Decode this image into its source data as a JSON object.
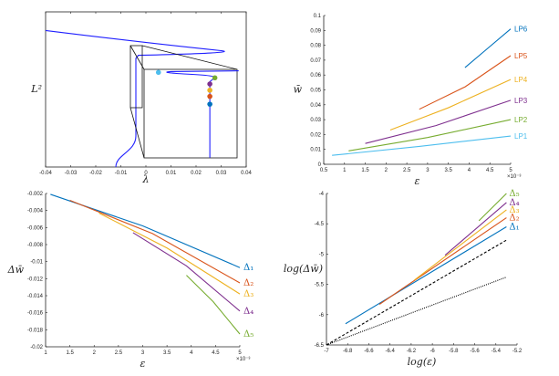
{
  "chart_data": [
    {
      "type": "line",
      "title": "",
      "xlabel": "λ",
      "ylabel": "L²",
      "xlim": [
        -0.04,
        0.04
      ],
      "ylim": [
        0,
        1
      ],
      "xticks": [
        "-0.04",
        "-0.03",
        "-0.02",
        "-0.01",
        "0",
        "0.01",
        "0.02",
        "0.03",
        "0.04"
      ],
      "series": [
        {
          "name": "bifurcation-curve",
          "color": "#1f1fff",
          "points": [
            [
              -0.04,
              0.88
            ],
            [
              0.0,
              0.8
            ],
            [
              0.03,
              0.75
            ],
            [
              0.034,
              0.73
            ],
            [
              0.03,
              0.72
            ],
            [
              -0.003,
              0.72
            ],
            [
              -0.004,
              0.7
            ],
            [
              -0.004,
              0.2
            ],
            [
              -0.0045,
              0.15
            ],
            [
              -0.009,
              0.08
            ],
            [
              -0.012,
              0.0
            ]
          ]
        }
      ],
      "inset": {
        "series": [
          {
            "name": "inset-curve",
            "color": "#1f1fff",
            "points": [
              [
                0.037,
                0.62
              ],
              [
                0.005,
                0.61
              ],
              [
                0.015,
                0.6
              ],
              [
                0.027,
                0.57
              ],
              [
                0.0255,
                0.55
              ],
              [
                0.0255,
                0.06
              ]
            ]
          }
        ],
        "markers": [
          {
            "name": "LP1",
            "x": 0.005,
            "y": 0.61,
            "color": "#4DBEEE"
          },
          {
            "name": "LP2",
            "x": 0.0275,
            "y": 0.575,
            "color": "#77AC30"
          },
          {
            "name": "LP3",
            "x": 0.0255,
            "y": 0.535,
            "color": "#7E2F8E"
          },
          {
            "name": "LP4",
            "x": 0.0255,
            "y": 0.495,
            "color": "#EDB120"
          },
          {
            "name": "LP5",
            "x": 0.0255,
            "y": 0.455,
            "color": "#D95319"
          },
          {
            "name": "LP6",
            "x": 0.0255,
            "y": 0.405,
            "color": "#0072BD"
          }
        ]
      }
    },
    {
      "type": "line",
      "title": "",
      "xlabel": "ε",
      "ylabel": "w̄",
      "xlim": [
        0.5,
        5
      ],
      "ylim": [
        0,
        0.1
      ],
      "x_multiplier": "×10⁻³",
      "xticks": [
        "0.5",
        "1",
        "1.5",
        "2",
        "2.5",
        "3",
        "3.5",
        "4",
        "4.5",
        "5"
      ],
      "yticks": [
        "0",
        "0.01",
        "0.02",
        "0.03",
        "0.04",
        "0.05",
        "0.06",
        "0.07",
        "0.08",
        "0.09",
        "0.1"
      ],
      "series": [
        {
          "name": "LP1",
          "color": "#4DBEEE",
          "x": [
            0.7,
            2.8,
            5
          ],
          "y": [
            0.006,
            0.012,
            0.019
          ]
        },
        {
          "name": "LP2",
          "color": "#77AC30",
          "x": [
            1.1,
            3.0,
            5
          ],
          "y": [
            0.009,
            0.018,
            0.03
          ]
        },
        {
          "name": "LP3",
          "color": "#7E2F8E",
          "x": [
            1.5,
            3.2,
            5
          ],
          "y": [
            0.014,
            0.026,
            0.043
          ]
        },
        {
          "name": "LP4",
          "color": "#EDB120",
          "x": [
            2.1,
            3.5,
            5
          ],
          "y": [
            0.023,
            0.038,
            0.057
          ]
        },
        {
          "name": "LP5",
          "color": "#D95319",
          "x": [
            2.8,
            3.9,
            5
          ],
          "y": [
            0.037,
            0.052,
            0.073
          ]
        },
        {
          "name": "LP6",
          "color": "#0072BD",
          "x": [
            3.9,
            4.45,
            5
          ],
          "y": [
            0.065,
            0.078,
            0.091
          ]
        }
      ]
    },
    {
      "type": "line",
      "title": "",
      "xlabel": "ε",
      "ylabel": "Δw̄",
      "xlim": [
        1,
        5
      ],
      "ylim": [
        -0.02,
        -0.002
      ],
      "x_multiplier": "×10⁻³",
      "xticks": [
        "1",
        "1.5",
        "2",
        "2.5",
        "3",
        "3.5",
        "4",
        "4.5",
        "5"
      ],
      "yticks": [
        "-0.002",
        "-0.004",
        "-0.006",
        "-0.008",
        "-0.01",
        "-0.012",
        "-0.014",
        "-0.016",
        "-0.018",
        "-0.02"
      ],
      "series": [
        {
          "name": "Δ₁",
          "color": "#0072BD",
          "x": [
            1.1,
            3.0,
            5
          ],
          "y": [
            -0.0021,
            -0.0058,
            -0.0107
          ]
        },
        {
          "name": "Δ₂",
          "color": "#D95319",
          "x": [
            1.5,
            3.2,
            5
          ],
          "y": [
            -0.0028,
            -0.0067,
            -0.0125
          ]
        },
        {
          "name": "Δ₃",
          "color": "#EDB120",
          "x": [
            2.1,
            3.5,
            5
          ],
          "y": [
            -0.0043,
            -0.0084,
            -0.0138
          ]
        },
        {
          "name": "Δ₄",
          "color": "#7E2F8E",
          "x": [
            2.8,
            3.9,
            5
          ],
          "y": [
            -0.0066,
            -0.0105,
            -0.0158
          ]
        },
        {
          "name": "Δ₅",
          "color": "#77AC30",
          "x": [
            3.9,
            4.45,
            5
          ],
          "y": [
            -0.0116,
            -0.0147,
            -0.0185
          ]
        }
      ]
    },
    {
      "type": "line",
      "title": "",
      "xlabel": "log(ε)",
      "ylabel": "log(Δw̄)",
      "xlim": [
        -7,
        -5.2
      ],
      "ylim": [
        -6.5,
        -4
      ],
      "xticks": [
        "-7",
        "-6.8",
        "-6.6",
        "-6.4",
        "-6.2",
        "-6",
        "-5.8",
        "-5.6",
        "-5.4",
        "-5.2"
      ],
      "yticks": [
        "-4",
        "-4.5",
        "-5",
        "-5.5",
        "-6",
        "-6.5"
      ],
      "series": [
        {
          "name": "Δ₁",
          "color": "#0072BD",
          "x": [
            -6.82,
            -5.3
          ],
          "y": [
            -6.15,
            -4.55
          ]
        },
        {
          "name": "Δ₂",
          "color": "#D95319",
          "x": [
            -6.5,
            -5.3
          ],
          "y": [
            -5.83,
            -4.4
          ]
        },
        {
          "name": "Δ₃",
          "color": "#EDB120",
          "x": [
            -6.17,
            -5.3
          ],
          "y": [
            -5.43,
            -4.27
          ]
        },
        {
          "name": "Δ₄",
          "color": "#7E2F8E",
          "x": [
            -5.88,
            -5.3
          ],
          "y": [
            -5.02,
            -4.15
          ]
        },
        {
          "name": "Δ₅",
          "color": "#77AC30",
          "x": [
            -5.56,
            -5.3
          ],
          "y": [
            -4.45,
            -4.0
          ]
        },
        {
          "name": "slope-reference-dashed",
          "color": "#000000",
          "style": "dashed",
          "x": [
            -7,
            -5.3
          ],
          "y": [
            -6.5,
            -4.77
          ]
        },
        {
          "name": "slope-reference-dotted",
          "color": "#000000",
          "style": "dotted",
          "x": [
            -7,
            -5.3
          ],
          "y": [
            -6.5,
            -5.38
          ]
        }
      ]
    }
  ]
}
